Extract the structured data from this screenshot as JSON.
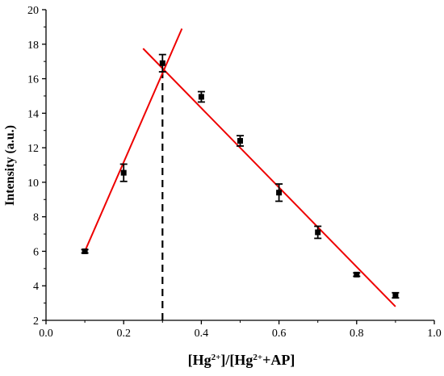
{
  "chart_data": {
    "type": "scatter",
    "xlabel": {
      "parts": [
        {
          "text": "[Hg",
          "sup": false
        },
        {
          "text": "2+",
          "sup": true
        },
        {
          "text": "]/[Hg",
          "sup": false
        },
        {
          "text": "2+",
          "sup": true
        },
        {
          "text": "+AP]",
          "sup": false
        }
      ]
    },
    "ylabel": "Intensity (a.u.)",
    "xlim": [
      0.0,
      1.0
    ],
    "ylim": [
      2,
      20
    ],
    "xticks": [
      "0.0",
      "0.2",
      "0.4",
      "0.6",
      "0.8",
      "1.0"
    ],
    "yticks": [
      "2",
      "4",
      "6",
      "8",
      "10",
      "12",
      "14",
      "16",
      "18",
      "20"
    ],
    "grid": false,
    "series": [
      {
        "x": [
          0.1,
          0.2,
          0.3,
          0.4,
          0.5,
          0.6,
          0.7,
          0.8,
          0.9
        ],
        "y": [
          6.0,
          10.55,
          16.9,
          14.95,
          12.4,
          9.4,
          7.1,
          4.65,
          3.45
        ],
        "yerr": [
          0.1,
          0.5,
          0.5,
          0.3,
          0.3,
          0.5,
          0.35,
          0.1,
          0.15
        ],
        "color": "#000000",
        "marker": "square"
      }
    ],
    "fit_lines": [
      {
        "x": [
          0.1,
          0.35
        ],
        "y": [
          6.0,
          18.9
        ],
        "color": "#ee0000"
      },
      {
        "x": [
          0.25,
          0.9
        ],
        "y": [
          17.75,
          2.8
        ],
        "color": "#ee0000"
      }
    ],
    "vline": {
      "x": 0.3,
      "y": [
        2,
        16.6
      ],
      "style": "dashed",
      "color": "#000000"
    }
  }
}
